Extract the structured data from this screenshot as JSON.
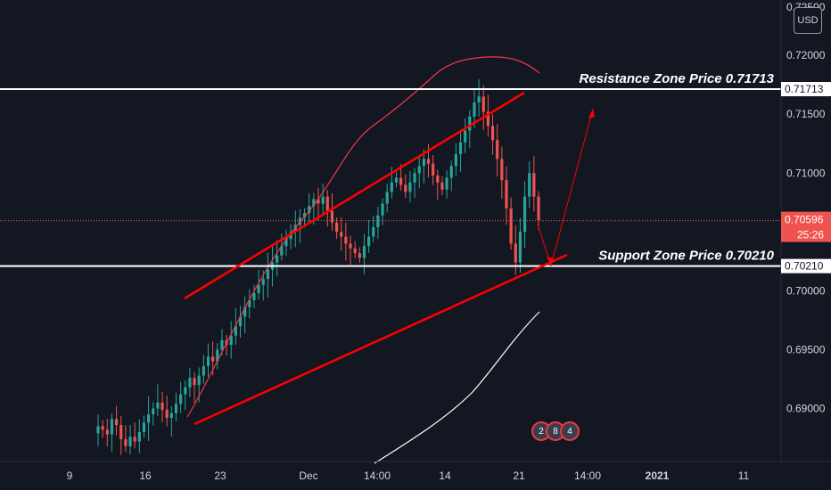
{
  "chart_data": {
    "type": "candlestick",
    "currency": "USD",
    "y_ticks": [
      "0.72000",
      "0.71500",
      "0.71000",
      "0.70000",
      "0.69500",
      "0.69000"
    ],
    "y_ticks_values": [
      0.72,
      0.715,
      0.71,
      0.7,
      0.695,
      0.69
    ],
    "top_partial_tick": "0.72500",
    "ylim": [
      0.6855,
      0.7247
    ],
    "x_ticks": [
      {
        "label": "9",
        "bold": false
      },
      {
        "label": "16",
        "bold": false
      },
      {
        "label": "23",
        "bold": false
      },
      {
        "label": "Dec",
        "bold": false
      },
      {
        "label": "14:00",
        "bold": false
      },
      {
        "label": "14",
        "bold": false
      },
      {
        "label": "21",
        "bold": false
      },
      {
        "label": "14:00",
        "bold": false
      },
      {
        "label": "2021",
        "bold": true
      },
      {
        "label": "11",
        "bold": false
      }
    ],
    "resistance": {
      "label": "Resistance Zone Price 0.71713",
      "price": 0.71713,
      "tag": "0.71713"
    },
    "support": {
      "label": "Support Zone Price 0.70210",
      "price": 0.7021,
      "tag": "0.70210"
    },
    "last_price": {
      "price": 0.70596,
      "tag": "0.70596",
      "countdown": "25:26"
    },
    "colors": {
      "up": "#26a69a",
      "down": "#ef5350",
      "trend": "#ff0000",
      "ma_red": "#f23645",
      "ma_white": "#ffffff",
      "zone_line": "#ffffff"
    },
    "candles_close_path": [
      0.6885,
      0.6882,
      0.6878,
      0.6891,
      0.6886,
      0.6874,
      0.6868,
      0.6876,
      0.6872,
      0.688,
      0.6888,
      0.6895,
      0.69,
      0.6905,
      0.6899,
      0.6892,
      0.6896,
      0.6904,
      0.6912,
      0.6918,
      0.6926,
      0.692,
      0.6928,
      0.6936,
      0.6944,
      0.694,
      0.695,
      0.6958,
      0.6954,
      0.6962,
      0.697,
      0.6978,
      0.6986,
      0.6992,
      0.6998,
      0.7005,
      0.701,
      0.7018,
      0.7024,
      0.703,
      0.7038,
      0.7044,
      0.705,
      0.7056,
      0.7062,
      0.7066,
      0.7072,
      0.7078,
      0.7074,
      0.708,
      0.7068,
      0.7058,
      0.705,
      0.7046,
      0.704,
      0.7036,
      0.7032,
      0.7028,
      0.7038,
      0.7046,
      0.7054,
      0.7064,
      0.7074,
      0.7084,
      0.7092,
      0.7096,
      0.709,
      0.7084,
      0.7092,
      0.71,
      0.7106,
      0.7112,
      0.7108,
      0.7098,
      0.7092,
      0.7086,
      0.7096,
      0.7106,
      0.7116,
      0.7126,
      0.7136,
      0.7148,
      0.716,
      0.7165,
      0.7152,
      0.714,
      0.7128,
      0.7112,
      0.7094,
      0.707,
      0.704,
      0.7024,
      0.705,
      0.708,
      0.71,
      0.708,
      0.706
    ],
    "trend_lines": [
      {
        "x": [
          "Nov 19",
          "Dec 19"
        ],
        "y": [
          0.7,
          0.7174
        ]
      },
      {
        "x": [
          "Nov 20",
          "Dec 23"
        ],
        "y": [
          0.6885,
          0.7024
        ]
      }
    ],
    "projection": {
      "x": [
        "Dec 21",
        "Dec 22",
        "Dec 25"
      ],
      "y": [
        0.7058,
        0.7022,
        0.7164
      ]
    }
  }
}
